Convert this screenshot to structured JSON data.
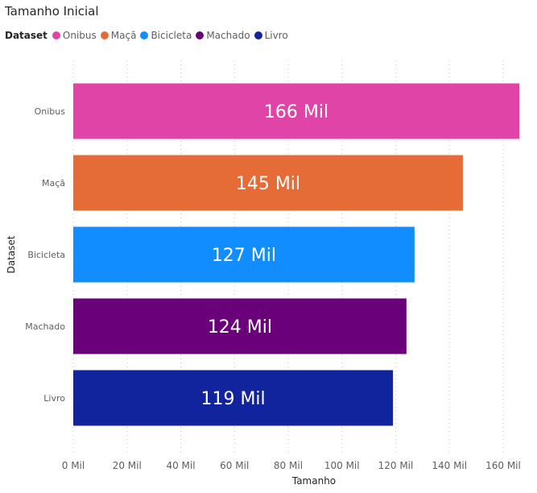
{
  "chart_data": {
    "type": "bar",
    "orientation": "horizontal",
    "title": "Tamanho Inicial",
    "legend_title": "Dataset",
    "categories": [
      "Onibus",
      "Maçã",
      "Bicicleta",
      "Machado",
      "Livro"
    ],
    "values": [
      166000,
      145000,
      127000,
      124000,
      119000
    ],
    "data_labels": [
      "166 Mil",
      "145 Mil",
      "127 Mil",
      "124 Mil",
      "119 Mil"
    ],
    "colors": [
      "#E044A7",
      "#E66C37",
      "#118DFF",
      "#6B007B",
      "#12239E"
    ],
    "xlabel": "Tamanho",
    "ylabel": "Dataset",
    "xlim": [
      0,
      166000
    ],
    "x_ticks": [
      0,
      20000,
      40000,
      60000,
      80000,
      100000,
      120000,
      140000,
      160000
    ],
    "x_tick_labels": [
      "0 Mil",
      "20 Mil",
      "40 Mil",
      "60 Mil",
      "80 Mil",
      "100 Mil",
      "120 Mil",
      "140 Mil",
      "160 Mil"
    ],
    "grid": "vertical-dotted",
    "legend_position": "top-left"
  }
}
